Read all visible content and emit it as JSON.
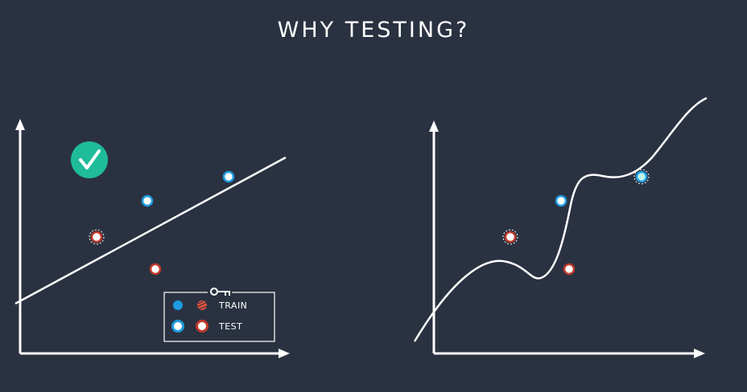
{
  "title": "WHY TESTING?",
  "legend": {
    "train_label": "TRAIN",
    "test_label": "TEST",
    "key_icon": "key-icon"
  },
  "check_icon": "check-circle-icon",
  "colors": {
    "background": "#2a3241",
    "train_blue": "#1e9be0",
    "train_red": "#e8553f",
    "test_blue_ring": "#1e9be0",
    "test_red_ring": "#c0392b",
    "check_teal": "#1fbc9c",
    "axes": "#ffffff"
  }
}
